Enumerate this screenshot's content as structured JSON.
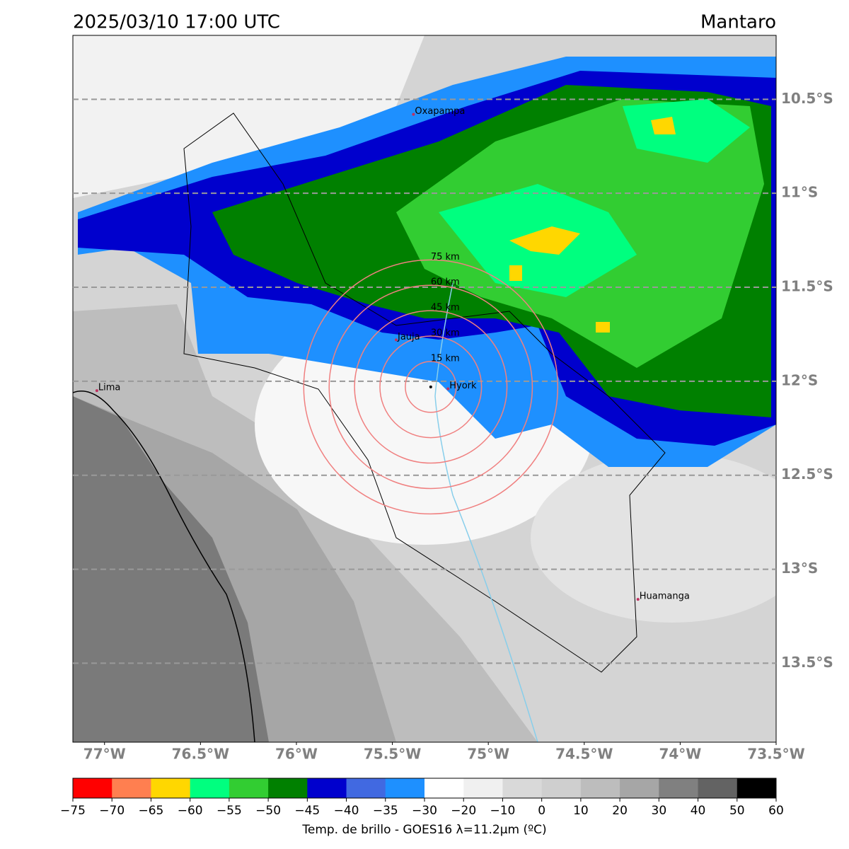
{
  "title": "2025/03/10 17:00 UTC",
  "region": "Mantaro",
  "map": {
    "xlim": [
      -77.165,
      -73.5
    ],
    "ylim": [
      -13.92,
      -10.16
    ],
    "lat_ticks": [
      {
        "value": -10.5,
        "label": "10.5°S"
      },
      {
        "value": -11,
        "label": "11°S"
      },
      {
        "value": -11.5,
        "label": "11.5°S"
      },
      {
        "value": -12,
        "label": "12°S"
      },
      {
        "value": -12.5,
        "label": "12.5°S"
      },
      {
        "value": -13,
        "label": "13°S"
      },
      {
        "value": -13.5,
        "label": "13.5°S"
      }
    ],
    "lon_ticks": [
      {
        "value": -77,
        "label": "77°W"
      },
      {
        "value": -76.5,
        "label": "76.5°W"
      },
      {
        "value": -76,
        "label": "76°W"
      },
      {
        "value": -75.5,
        "label": "75.5°W"
      },
      {
        "value": -75,
        "label": "75°W"
      },
      {
        "value": -74.5,
        "label": "74.5°W"
      },
      {
        "value": -74,
        "label": "74°W"
      },
      {
        "value": -73.5,
        "label": "73.5°W"
      }
    ],
    "cities": [
      {
        "name": "Oxapampa",
        "lon": -75.39,
        "lat": -10.58
      },
      {
        "name": "Lima",
        "lon": -77.04,
        "lat": -12.05
      },
      {
        "name": "Huamanga",
        "lon": -74.22,
        "lat": -13.16
      },
      {
        "name": "Jauja",
        "lon": -75.48,
        "lat": -11.78
      },
      {
        "name": "Hyork",
        "lon": -75.21,
        "lat": -12.04
      }
    ],
    "radar": {
      "lon": -75.3,
      "lat": -12.03
    },
    "rings": [
      {
        "value": 15,
        "label": "15 km"
      },
      {
        "value": 30,
        "label": "30 km"
      },
      {
        "value": 45,
        "label": "45 km"
      },
      {
        "value": 60,
        "label": "60 km"
      },
      {
        "value": 75,
        "label": "75 km"
      }
    ]
  },
  "colorbar": {
    "label": "Temp. de brillo - GOES16 λ=11.2μm (ºC)",
    "colors": [
      "#ff0000",
      "#ff7f50",
      "#ffd700",
      "#00ff7f",
      "#32cd32",
      "#008000",
      "#0000cd",
      "#4169e1",
      "#1e90ff",
      "#ffffff",
      "#f0f0f0",
      "#d9d9d9",
      "#cfcfcf",
      "#bdbdbd",
      "#a6a6a6",
      "#808080",
      "#636363",
      "#000000"
    ],
    "ticks": [
      {
        "value": -75,
        "label": "−75"
      },
      {
        "value": -70,
        "label": "−70"
      },
      {
        "value": -65,
        "label": "−65"
      },
      {
        "value": -60,
        "label": "−60"
      },
      {
        "value": -55,
        "label": "−55"
      },
      {
        "value": -50,
        "label": "−50"
      },
      {
        "value": -45,
        "label": "−45"
      },
      {
        "value": -40,
        "label": "−40"
      },
      {
        "value": -35,
        "label": "−35"
      },
      {
        "value": -30,
        "label": "−30"
      },
      {
        "value": -20,
        "label": "−20"
      },
      {
        "value": -10,
        "label": "−10"
      },
      0,
      10,
      20,
      30,
      40,
      50,
      60
    ]
  }
}
